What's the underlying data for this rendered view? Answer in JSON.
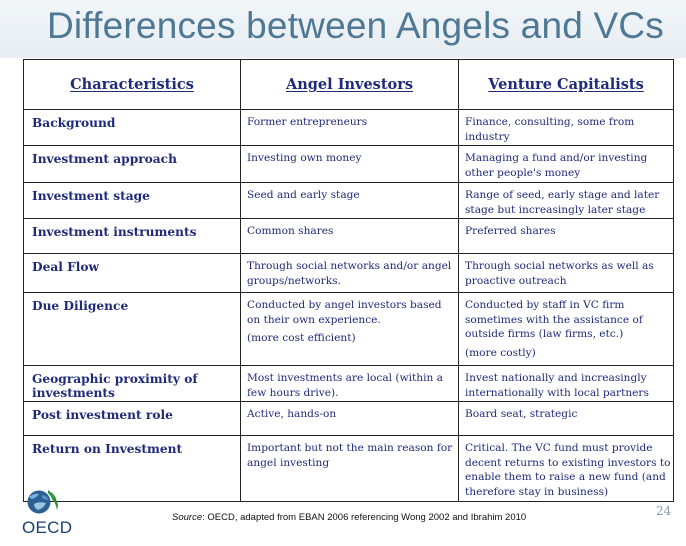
{
  "title": "Differences between Angels and VCs",
  "table": {
    "headers": [
      "Characteristics",
      "Angel Investors",
      "Venture Capitalists"
    ],
    "rows": [
      {
        "label": "Background",
        "angel": "Former entrepreneurs",
        "vc": "Finance, consulting, some from industry"
      },
      {
        "label": "Investment approach",
        "angel": "Investing own money",
        "vc": "Managing a fund and/or investing other people's money"
      },
      {
        "label": "Investment stage",
        "angel": "Seed and early stage",
        "vc": "Range of seed, early stage and later stage but increasingly later stage"
      },
      {
        "label": "Investment instruments",
        "angel": "Common shares",
        "vc": "Preferred shares"
      },
      {
        "label": "Deal Flow",
        "angel": "Through social networks and/or angel groups/networks.",
        "vc": "Through social networks as well as proactive outreach"
      },
      {
        "label": "Due Diligence",
        "angel": "Conducted by angel investors based on their own experience.",
        "angel_note": "(more cost efficient)",
        "vc": "Conducted by staff in VC firm sometimes with the assistance of outside firms (law firms, etc.)",
        "vc_note": "(more costly)"
      },
      {
        "label": "Geographic proximity of investments",
        "angel": "Most investments are local (within a few hours drive).",
        "vc": "Invest nationally and increasingly internationally with local partners"
      },
      {
        "label": "Post investment role",
        "angel": "Active, hands-on",
        "vc": "Board seat, strategic"
      },
      {
        "label": "Return on Investment",
        "angel": "Important but not the main reason for angel investing",
        "vc": "Critical. The VC fund must provide decent returns to existing investors to enable them to raise a new fund (and therefore stay in business)"
      }
    ]
  },
  "footer": {
    "logo_text": "OECD",
    "source_label": "Source",
    "source_text": ": OECD, adapted from EBAN 2006 referencing Wong 2002 and Ibrahim 2010",
    "page_number": "24"
  },
  "colors": {
    "title": "#4e7893",
    "table_text": "#1f2a7a",
    "logo": "#1c3e74"
  }
}
